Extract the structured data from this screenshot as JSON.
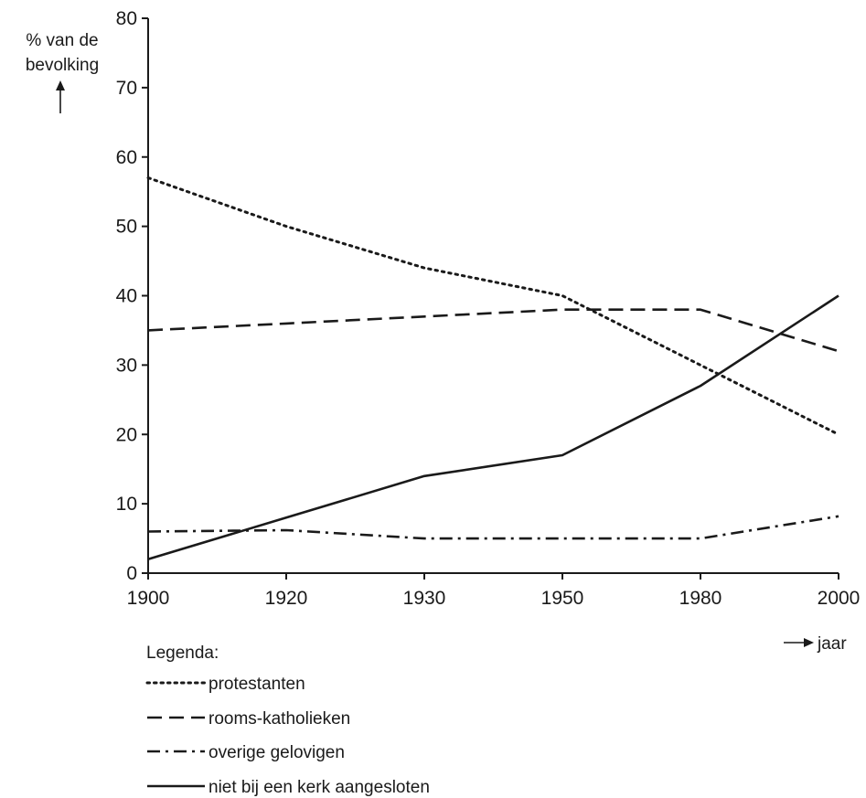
{
  "chart_data": {
    "type": "line",
    "x": [
      "1900",
      "1920",
      "1930",
      "1950",
      "1980",
      "2000"
    ],
    "ylabel_lines": [
      "% van de",
      "bevolking"
    ],
    "xlabel": "jaar",
    "ylim": [
      0,
      80
    ],
    "yticks": [
      0,
      10,
      20,
      30,
      40,
      50,
      60,
      70,
      80
    ],
    "grid": false,
    "legend_title": "Legenda:",
    "legend_placement": "bottom-left",
    "series": [
      {
        "name": "protestanten",
        "style": "dotted",
        "values": [
          57,
          50,
          44,
          40,
          30,
          20
        ]
      },
      {
        "name": "rooms-katholieken",
        "style": "dashed",
        "values": [
          35,
          36,
          37,
          38,
          38,
          32
        ]
      },
      {
        "name": "overige gelovigen",
        "style": "dashdot",
        "values": [
          6,
          6.2,
          5,
          5,
          5,
          8.2
        ]
      },
      {
        "name": "niet bij een kerk aangesloten",
        "style": "solid",
        "values": [
          2,
          8,
          14,
          17,
          27,
          40
        ]
      }
    ],
    "line_color": "#1a1a1a"
  }
}
